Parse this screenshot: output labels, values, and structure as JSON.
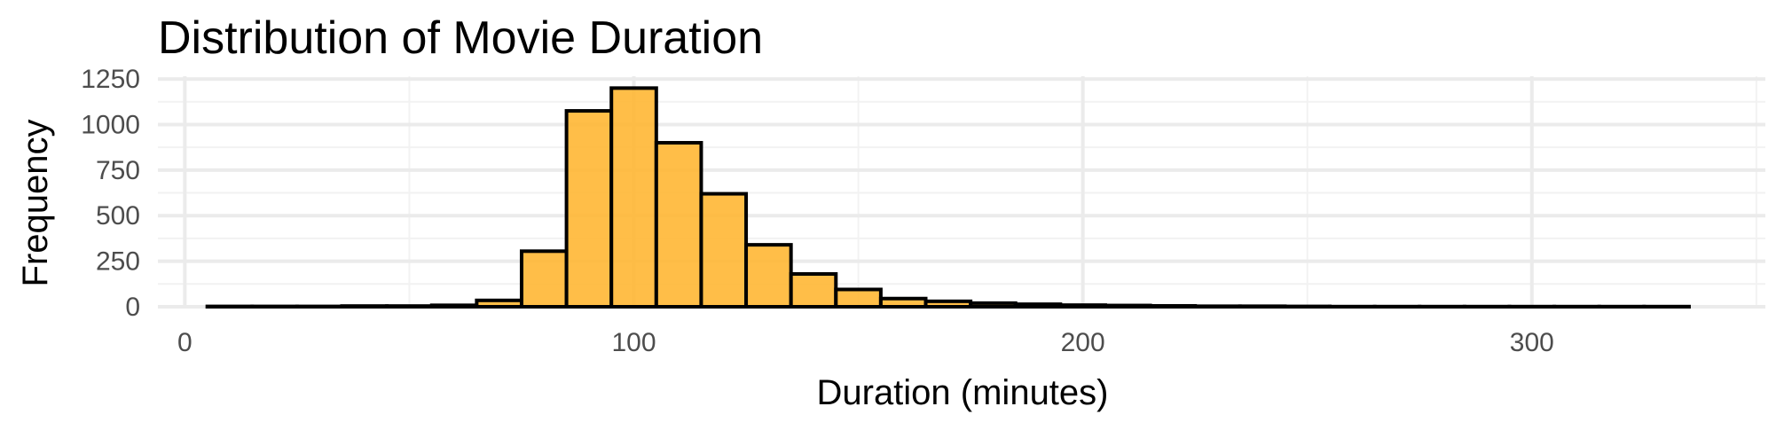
{
  "chart_data": {
    "type": "bar",
    "title": "Distribution of Movie Duration",
    "xlabel": "Duration (minutes)",
    "ylabel": "Frequency",
    "xlim": [
      -6,
      352
    ],
    "ylim": [
      0,
      1265
    ],
    "x_ticks": [
      0,
      100,
      200,
      300
    ],
    "y_ticks": [
      0,
      250,
      500,
      750,
      1000,
      1250
    ],
    "grid": true,
    "legend": "none",
    "bar_color": "#ffb734",
    "bar_border_color": "#000000",
    "bins": [
      {
        "x0": 5,
        "x1": 15,
        "value": 2
      },
      {
        "x0": 15,
        "x1": 25,
        "value": 2
      },
      {
        "x0": 25,
        "x1": 35,
        "value": 2
      },
      {
        "x0": 35,
        "x1": 45,
        "value": 4
      },
      {
        "x0": 45,
        "x1": 55,
        "value": 4
      },
      {
        "x0": 55,
        "x1": 65,
        "value": 8
      },
      {
        "x0": 65,
        "x1": 75,
        "value": 35
      },
      {
        "x0": 75,
        "x1": 85,
        "value": 305
      },
      {
        "x0": 85,
        "x1": 95,
        "value": 1075
      },
      {
        "x0": 95,
        "x1": 105,
        "value": 1200
      },
      {
        "x0": 105,
        "x1": 115,
        "value": 900
      },
      {
        "x0": 115,
        "x1": 125,
        "value": 620
      },
      {
        "x0": 125,
        "x1": 135,
        "value": 340
      },
      {
        "x0": 135,
        "x1": 145,
        "value": 180
      },
      {
        "x0": 145,
        "x1": 155,
        "value": 95
      },
      {
        "x0": 155,
        "x1": 165,
        "value": 45
      },
      {
        "x0": 165,
        "x1": 175,
        "value": 30
      },
      {
        "x0": 175,
        "x1": 185,
        "value": 20
      },
      {
        "x0": 185,
        "x1": 195,
        "value": 14
      },
      {
        "x0": 195,
        "x1": 205,
        "value": 9
      },
      {
        "x0": 205,
        "x1": 215,
        "value": 7
      },
      {
        "x0": 215,
        "x1": 225,
        "value": 5
      },
      {
        "x0": 225,
        "x1": 235,
        "value": 3
      },
      {
        "x0": 235,
        "x1": 245,
        "value": 3
      },
      {
        "x0": 245,
        "x1": 255,
        "value": 2
      },
      {
        "x0": 255,
        "x1": 265,
        "value": 1
      },
      {
        "x0": 265,
        "x1": 275,
        "value": 1
      },
      {
        "x0": 275,
        "x1": 285,
        "value": 1
      },
      {
        "x0": 285,
        "x1": 295,
        "value": 1
      },
      {
        "x0": 295,
        "x1": 305,
        "value": 1
      },
      {
        "x0": 305,
        "x1": 315,
        "value": 1
      },
      {
        "x0": 315,
        "x1": 325,
        "value": 1
      },
      {
        "x0": 325,
        "x1": 335,
        "value": 1
      }
    ]
  }
}
